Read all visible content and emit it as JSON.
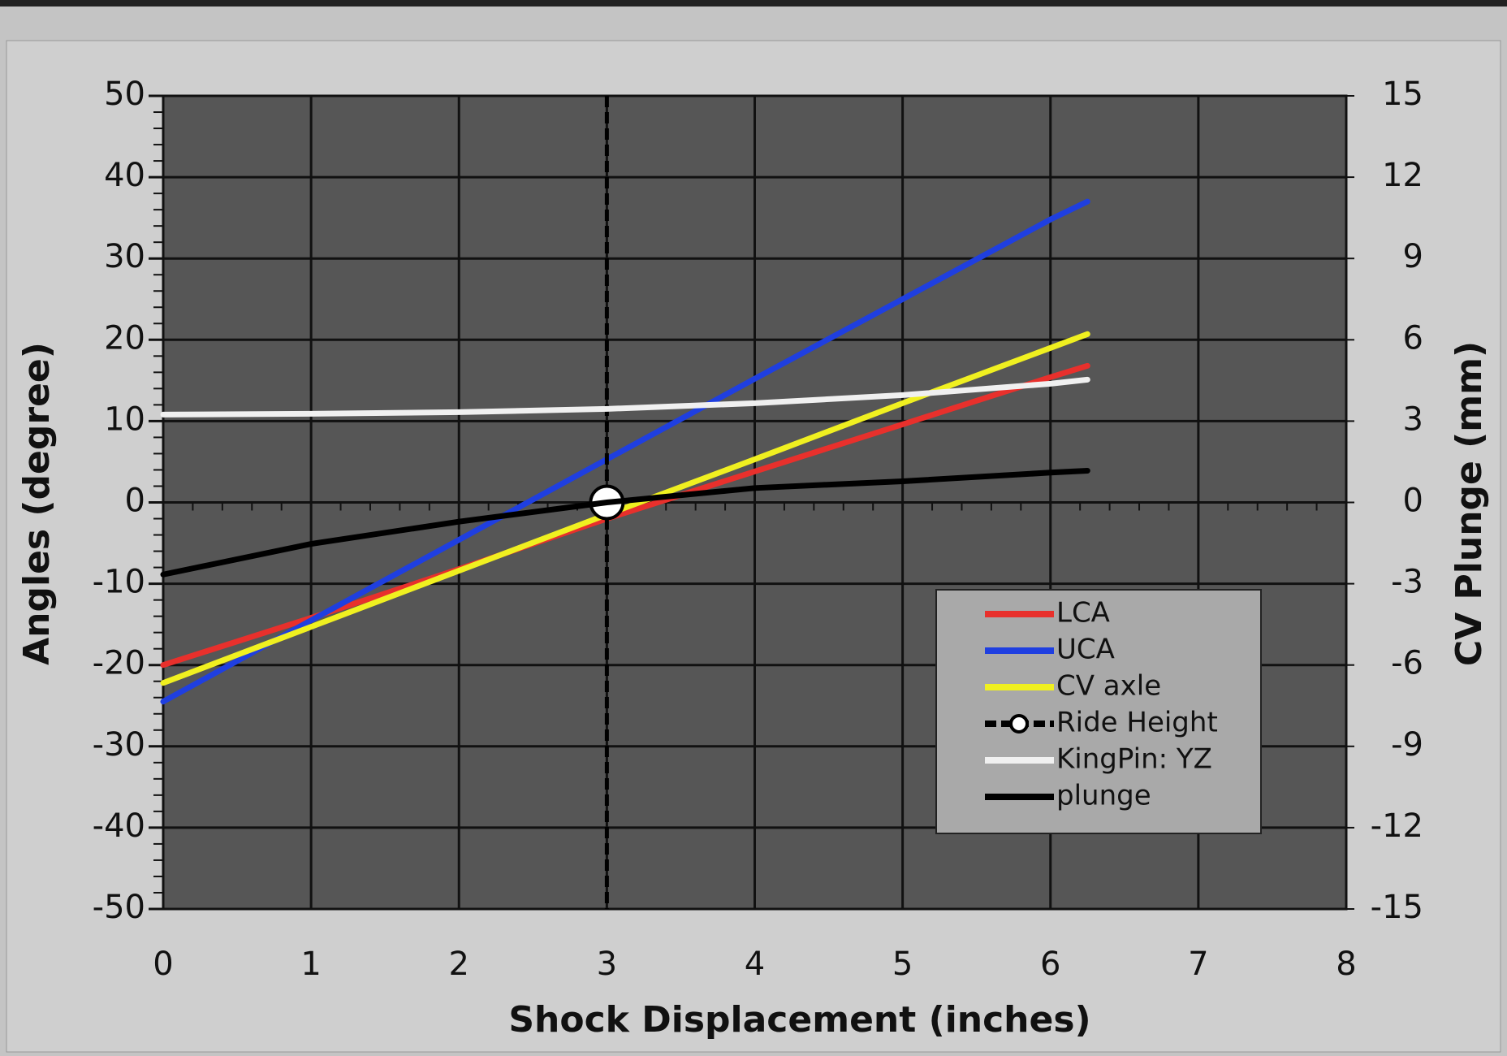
{
  "chart_data": {
    "type": "line",
    "x_label": "Shock Displacement (inches)",
    "y_label": "Angles (degree)",
    "y2_label": "CV Plunge (mm)",
    "x": [
      0,
      1,
      2,
      3,
      4,
      5,
      6,
      6.25
    ],
    "series": [
      {
        "name": "LCA",
        "color": "#e8302c",
        "values": [
          -20,
          -14.2,
          -8.2,
          -2,
          3.8,
          9.6,
          15.4,
          16.8
        ]
      },
      {
        "name": "UCA",
        "color": "#1f3fe0",
        "values": [
          -24.5,
          -14.5,
          -4.6,
          5.3,
          15.2,
          25,
          34.8,
          37
        ]
      },
      {
        "name": "CV axle",
        "color": "#f0f020",
        "values": [
          -22.2,
          -15.3,
          -8.4,
          -1.5,
          5.3,
          12.2,
          19,
          20.7
        ]
      },
      {
        "name": "Ride Height",
        "color": "#000000",
        "marker": "circle",
        "x": [
          3
        ],
        "values": [
          0
        ]
      },
      {
        "name": "KingPin: YZ",
        "color": "#f0f0f0",
        "values": [
          10.8,
          10.9,
          11.1,
          11.5,
          12.2,
          13.2,
          14.6,
          15.1
        ]
      },
      {
        "name": "plunge",
        "color": "#000000",
        "axis": "y2",
        "values": [
          -2.66,
          -1.53,
          -0.71,
          0,
          0.53,
          0.78,
          1.1,
          1.17
        ]
      }
    ],
    "xlim": [
      0,
      8
    ],
    "xticks": [
      0,
      1,
      2,
      3,
      4,
      5,
      6,
      7,
      8
    ],
    "ylim": [
      -50,
      50
    ],
    "yticks": [
      -50,
      -40,
      -30,
      -20,
      -10,
      0,
      10,
      20,
      30,
      40,
      50
    ],
    "y2lim": [
      -15,
      15
    ],
    "y2ticks": [
      -15,
      -12,
      -9,
      -6,
      -3,
      0,
      3,
      6,
      9,
      12,
      15
    ],
    "grid": true,
    "legend": "lower right"
  }
}
